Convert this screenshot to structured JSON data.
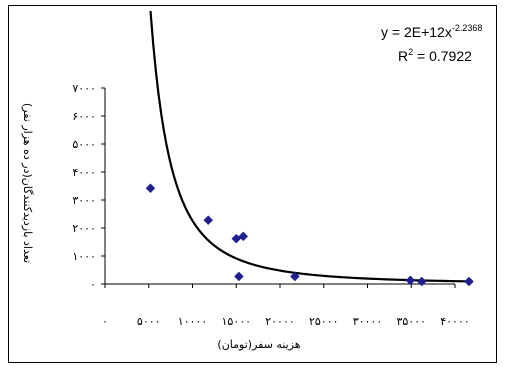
{
  "chart_data": {
    "type": "scatter",
    "title": "",
    "xlabel": "هزینه سفر(تومان)",
    "ylabel": "تعداد بازدیدکنندگان(در ده هزار نفر)",
    "xlim": [
      0,
      40000
    ],
    "ylim": [
      0,
      7000
    ],
    "x_ticks": [
      0,
      5000,
      10000,
      15000,
      20000,
      25000,
      30000,
      35000,
      40000
    ],
    "y_ticks": [
      0,
      1000,
      2000,
      3000,
      4000,
      5000,
      6000,
      7000
    ],
    "x_tick_labels": [
      "۰",
      "۵۰۰۰",
      "۱۰۰۰۰",
      "۱۵۰۰۰",
      "۲۰۰۰۰",
      "۲۵۰۰۰",
      "۳۰۰۰۰",
      "۳۵۰۰۰",
      "۴۰۰۰۰"
    ],
    "y_tick_labels": [
      "۰",
      "۱۰۰۰",
      "۲۰۰۰",
      "۳۰۰۰",
      "۴۰۰۰",
      "۵۰۰۰",
      "۶۰۰۰",
      "۷۰۰۰"
    ],
    "grid": false,
    "marker_color": "#1f1f8f",
    "trendline_color": "#000000",
    "series": [
      {
        "points": [
          {
            "x": 5200,
            "y": 3420
          },
          {
            "x": 11800,
            "y": 2280
          },
          {
            "x": 15000,
            "y": 1620
          },
          {
            "x": 15300,
            "y": 270
          },
          {
            "x": 15800,
            "y": 1700
          },
          {
            "x": 21700,
            "y": 270
          },
          {
            "x": 34900,
            "y": 130
          },
          {
            "x": 36200,
            "y": 90
          },
          {
            "x": 41600,
            "y": 90
          }
        ]
      }
    ],
    "trendline": {
      "type": "power",
      "coefficient": 2000000000000.0,
      "exponent": -2.2368,
      "x_start": 5200,
      "x_end": 41600
    },
    "equation_text": {
      "prefix": "y = 2E+12x",
      "exponent": "-2.2368",
      "r2_prefix": "R",
      "r2_sup": "2",
      "r2_value": " = 0.7922"
    }
  }
}
